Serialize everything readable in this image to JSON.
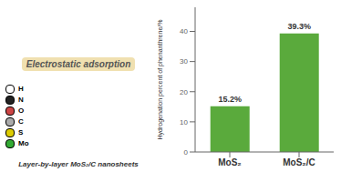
{
  "chart_data": {
    "type": "bar",
    "categories": [
      "MoS₂",
      "MoS₂/C"
    ],
    "values": [
      15.2,
      39.3
    ],
    "value_labels": [
      "15.2%",
      "39.3%"
    ],
    "data_labels": true,
    "color": "#5aaa3c",
    "ylabel": "Hydrogenation percent of phenanthrene/%",
    "ylim": [
      0,
      48
    ],
    "yticks": [
      0,
      10,
      20,
      30,
      40
    ],
    "grid": false,
    "annotations": [
      "Electrostatic adsorption",
      "H",
      "N",
      "O",
      "C",
      "S",
      "Mo",
      "Layer-by-layer MoS₂/C nanosheets"
    ]
  }
}
